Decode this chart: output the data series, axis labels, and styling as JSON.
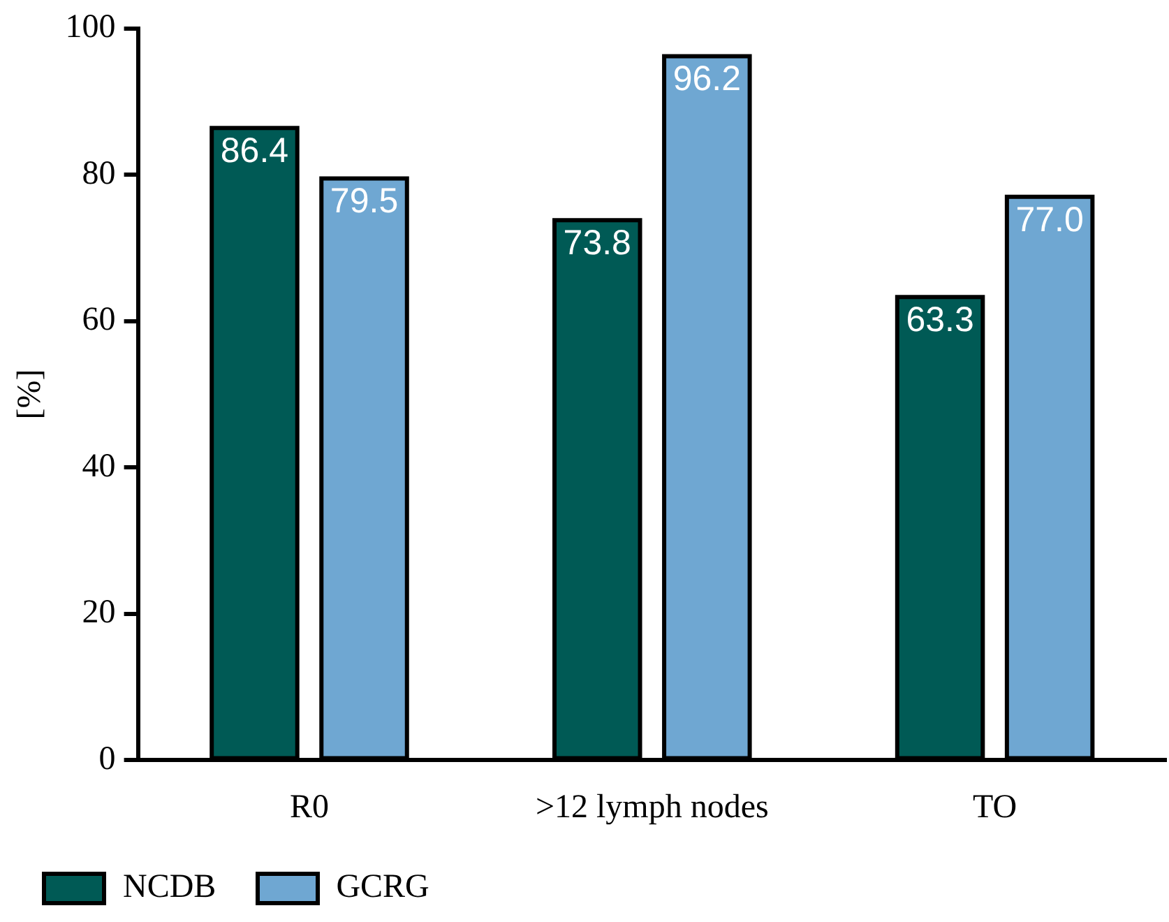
{
  "chart_data": {
    "type": "bar",
    "ylabel": "[%]",
    "categories": [
      "R0",
      ">12 lymph nodes",
      "TO"
    ],
    "series": [
      {
        "name": "NCDB",
        "color": "#005a55",
        "values": [
          86.4,
          73.8,
          63.3
        ],
        "value_labels": [
          "86.4",
          "73.8",
          "63.3"
        ]
      },
      {
        "name": "GCRG",
        "color": "#6fa7d2",
        "values": [
          79.5,
          96.2,
          77.0
        ],
        "value_labels": [
          "79.5",
          "96.2",
          "77.0"
        ]
      }
    ],
    "ylim": [
      0,
      100
    ],
    "yticks": [
      0,
      20,
      40,
      60,
      80,
      100
    ],
    "legend": "bottom left"
  }
}
